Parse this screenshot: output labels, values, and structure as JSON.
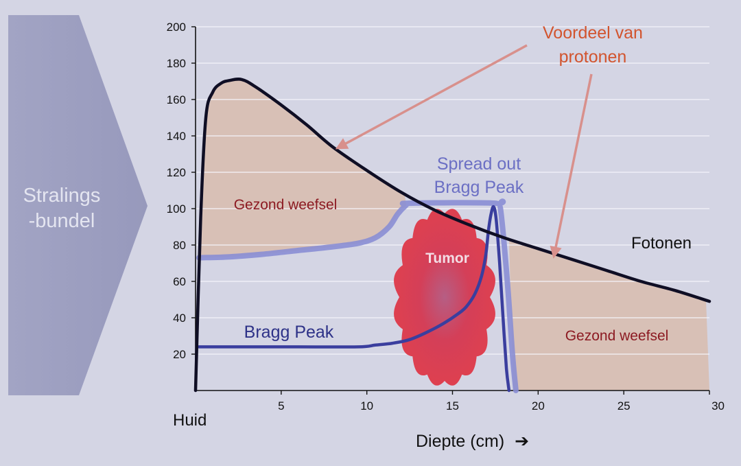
{
  "beam": {
    "label_line1": "Stralings",
    "label_line2": "-bundel"
  },
  "chart_data": {
    "type": "line",
    "xlim": [
      0,
      30
    ],
    "ylim": [
      0,
      200
    ],
    "x_ticks": [
      5,
      10,
      15,
      20,
      25,
      30
    ],
    "y_ticks": [
      20,
      40,
      60,
      80,
      100,
      120,
      140,
      160,
      180,
      200
    ],
    "grid": "horizontal",
    "origin_label": "Huid",
    "xlabel": "Diepte (cm)",
    "xlabel_arrow": "➔",
    "series": [
      {
        "name": "Fotonen",
        "color": "#0f0e24",
        "points": [
          [
            0,
            0
          ],
          [
            0.3,
            95
          ],
          [
            0.6,
            150
          ],
          [
            1.0,
            164
          ],
          [
            1.5,
            169
          ],
          [
            2.0,
            170.5
          ],
          [
            2.7,
            171
          ],
          [
            3.5,
            167
          ],
          [
            5,
            157
          ],
          [
            6.5,
            146
          ],
          [
            8,
            134
          ],
          [
            10,
            121
          ],
          [
            12,
            109
          ],
          [
            14,
            99
          ],
          [
            16,
            91
          ],
          [
            18,
            84
          ],
          [
            20,
            78
          ],
          [
            22,
            72
          ],
          [
            24,
            66
          ],
          [
            26,
            60
          ],
          [
            28,
            55
          ],
          [
            30,
            49
          ]
        ]
      },
      {
        "name": "Spread out Bragg Peak",
        "color": "#8a8ed4",
        "points": [
          [
            0.2,
            73
          ],
          [
            2,
            73.5
          ],
          [
            4,
            75
          ],
          [
            6,
            77
          ],
          [
            8,
            79
          ],
          [
            9.5,
            81
          ],
          [
            10.5,
            84
          ],
          [
            11.3,
            90
          ],
          [
            11.8,
            97
          ],
          [
            12.3,
            102
          ],
          [
            12.5,
            103
          ],
          [
            17.5,
            103
          ],
          [
            17.8,
            100
          ],
          [
            18.2,
            60
          ],
          [
            18.5,
            20
          ],
          [
            18.7,
            0
          ]
        ]
      },
      {
        "name": "Bragg Peak",
        "color": "#3a3e9e",
        "points": [
          [
            0.2,
            24
          ],
          [
            3,
            24
          ],
          [
            6,
            24
          ],
          [
            9.5,
            24
          ],
          [
            10.5,
            25
          ],
          [
            11.5,
            26
          ],
          [
            12.5,
            28
          ],
          [
            13.5,
            32
          ],
          [
            14.5,
            37
          ],
          [
            15.3,
            42
          ],
          [
            15.8,
            46
          ],
          [
            16.3,
            53
          ],
          [
            16.7,
            63
          ],
          [
            16.95,
            75
          ],
          [
            17.1,
            88
          ],
          [
            17.25,
            97
          ],
          [
            17.4,
            101
          ],
          [
            17.55,
            94
          ],
          [
            17.75,
            70
          ],
          [
            17.95,
            40
          ],
          [
            18.15,
            12
          ],
          [
            18.3,
            0
          ]
        ]
      }
    ],
    "labels": {
      "series_photons": "Fotonen",
      "series_sobp_line1": "Spread out",
      "series_sobp_line2": "Bragg Peak",
      "series_bragg": "Bragg Peak",
      "healthy_left": "Gezond weefsel",
      "healthy_right": "Gezond weefsel",
      "tumor": "Tumor",
      "advantage_line1": "Voordeel van",
      "advantage_line2": "protonen"
    }
  },
  "colors": {
    "background": "#d4d5e4",
    "shade": "#d8beb0",
    "arrow": "#d8908c",
    "advantage_text": "#d2542e",
    "healthy_text": "#8c1a22",
    "tumor_fill": "#d23b52",
    "grid": "#f4f4fa",
    "beam": "#9d9fc0"
  }
}
